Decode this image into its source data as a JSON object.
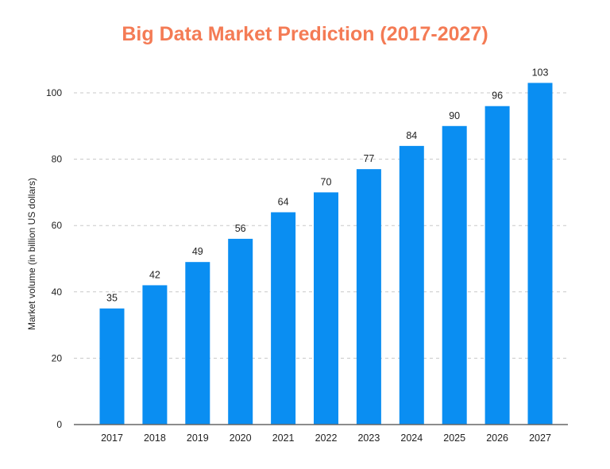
{
  "chart_data": {
    "type": "bar",
    "title": "Big Data Market Prediction (2017-2027)",
    "xlabel": "",
    "ylabel": "Market volume (in billion US dollars)",
    "categories": [
      "2017",
      "2018",
      "2019",
      "2020",
      "2021",
      "2022",
      "2023",
      "2024",
      "2025",
      "2026",
      "2027"
    ],
    "values": [
      35,
      42,
      49,
      56,
      64,
      70,
      77,
      84,
      90,
      96,
      103
    ],
    "ylim": [
      0,
      100
    ],
    "yticks": [
      0,
      20,
      40,
      60,
      80,
      100
    ],
    "grid": true,
    "data_labels": true,
    "colors": {
      "title": "#F47B55",
      "bar": "#0A8EF2",
      "grid": "#C8C8C8",
      "axis": "#666666",
      "text": "#222222"
    }
  }
}
